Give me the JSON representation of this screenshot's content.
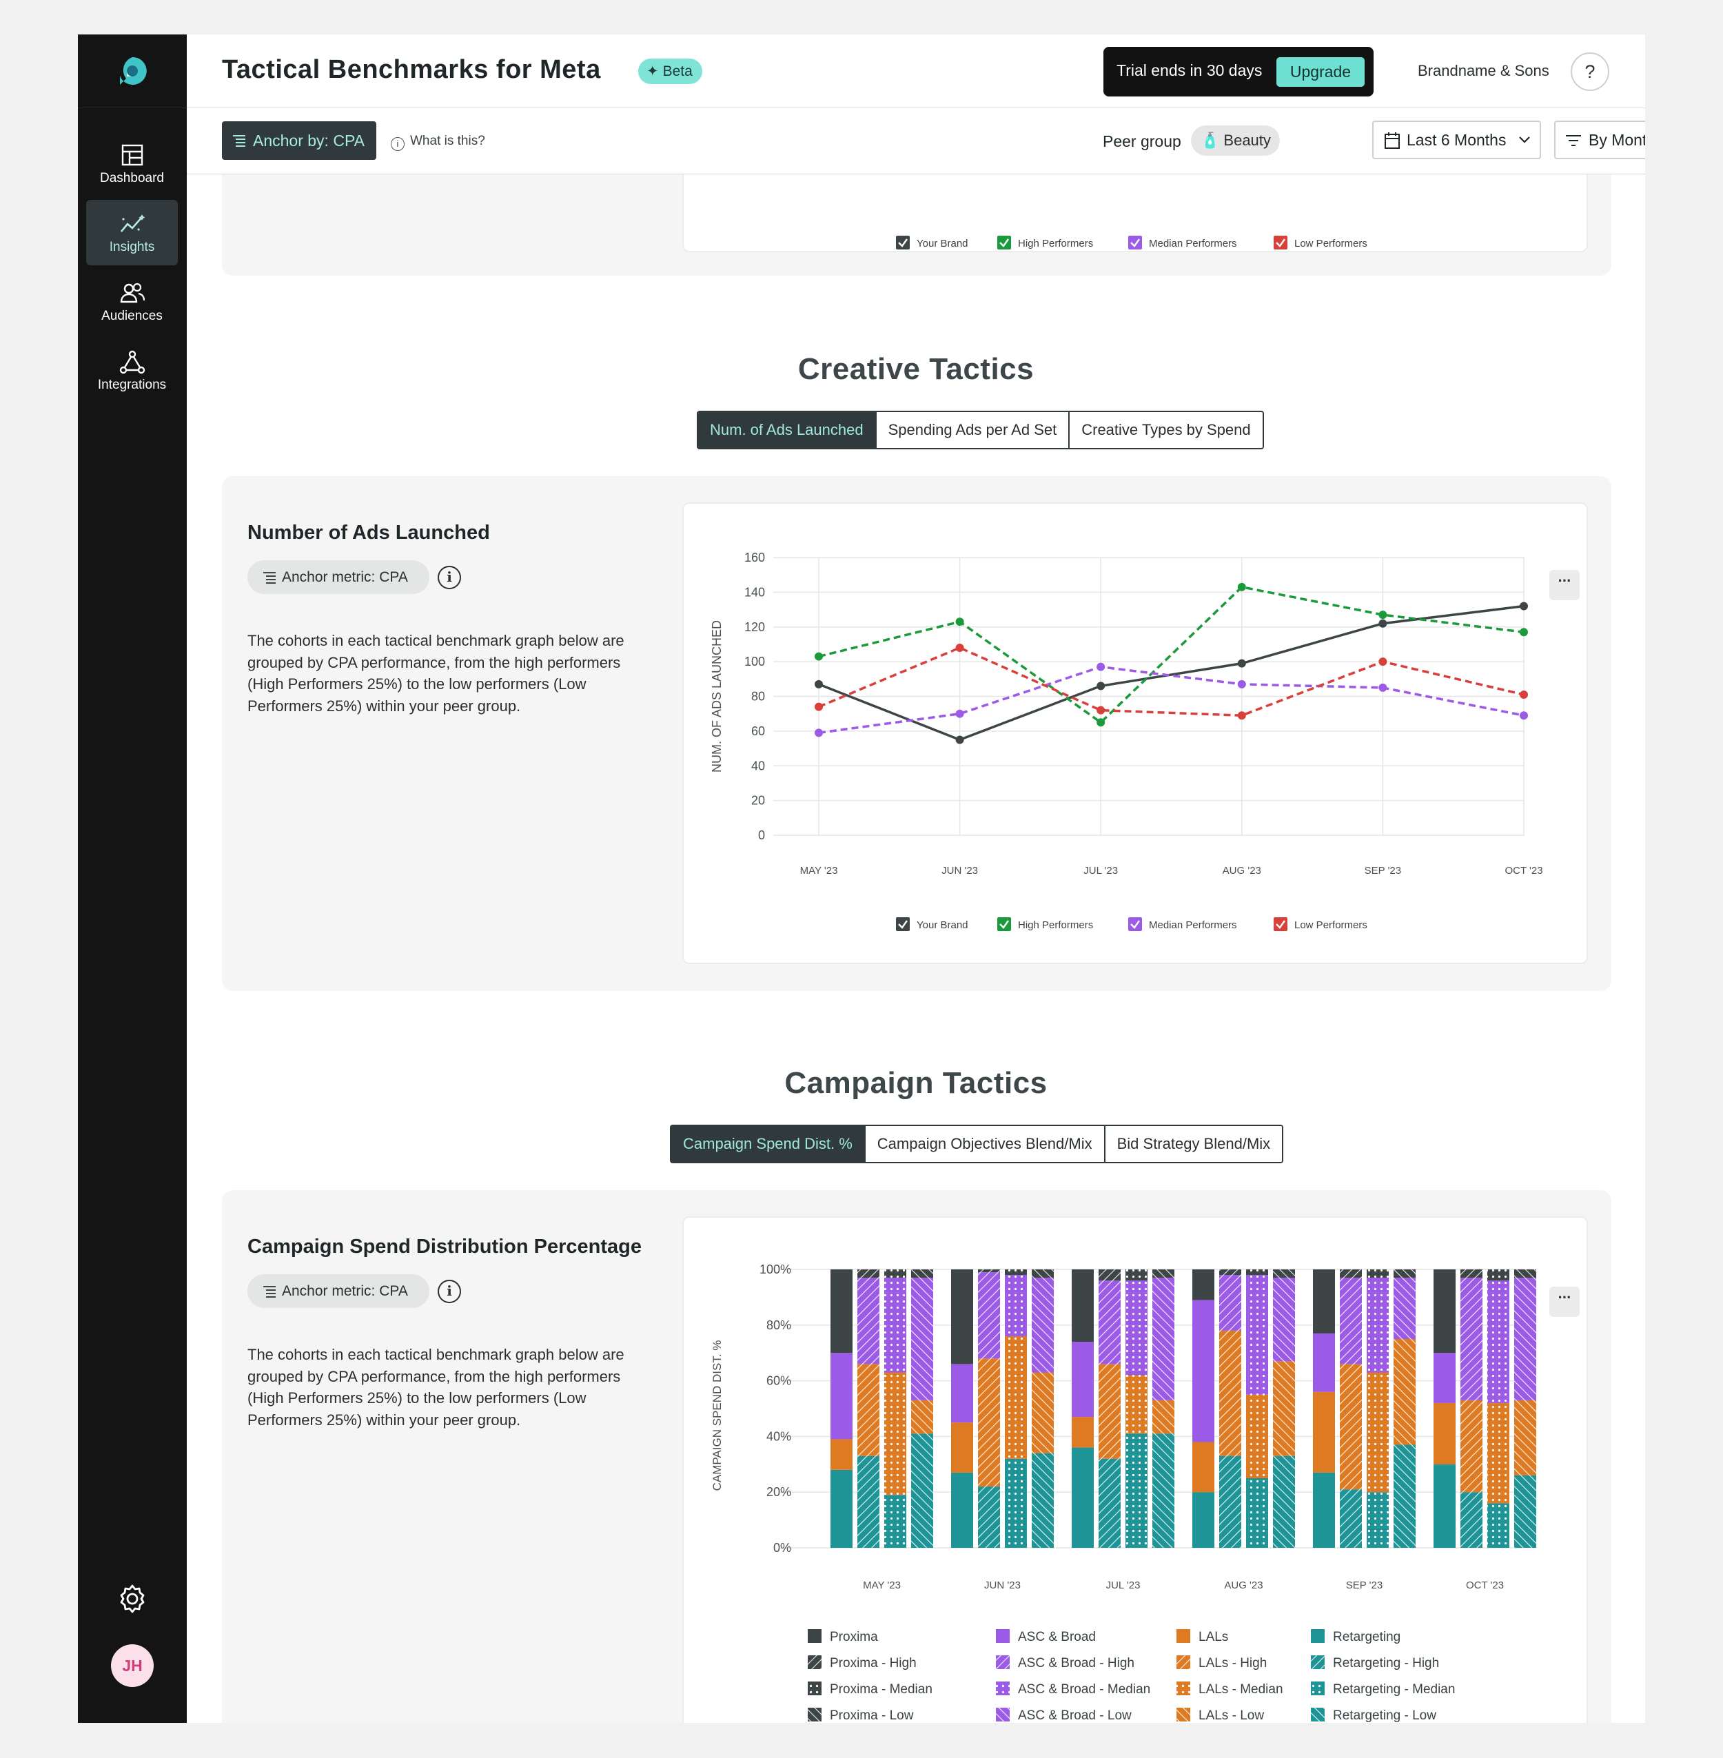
{
  "app": {
    "title": "Tactical Benchmarks for Meta",
    "beta_label": "Beta",
    "trial_text": "Trial ends in 30 days",
    "upgrade_label": "Upgrade",
    "brand": "Brandname & Sons",
    "help_label": "?"
  },
  "sidebar": {
    "items": [
      {
        "label": "Dashboard",
        "icon": "dashboard-icon"
      },
      {
        "label": "Insights",
        "icon": "insights-icon",
        "active": true
      },
      {
        "label": "Audiences",
        "icon": "audiences-icon"
      },
      {
        "label": "Integrations",
        "icon": "integrations-icon"
      }
    ],
    "avatar_initials": "JH"
  },
  "toolbar": {
    "anchor_label": "Anchor by: CPA",
    "what_label": "What is this?",
    "peer_group_label": "Peer group",
    "peer_group_value": "Beauty",
    "date_range": "Last 6 Months",
    "granularity": "By Month"
  },
  "top_legend": [
    "Your Brand",
    "High Performers",
    "Median Performers",
    "Low Performers"
  ],
  "creative": {
    "section_title": "Creative Tactics",
    "tabs": [
      "Num. of Ads Launched",
      "Spending Ads per Ad Set",
      "Creative Types by Spend"
    ],
    "card_title": "Number of Ads Launched",
    "metric_label": "Anchor metric: CPA",
    "description": "The cohorts in each tactical benchmark graph below are grouped by CPA performance, from the high performers (High Performers 25%) to the low performers (Low Performers 25%) within your peer group."
  },
  "campaign": {
    "section_title": "Campaign Tactics",
    "tabs": [
      "Campaign Spend Dist. %",
      "Campaign Objectives Blend/Mix",
      "Bid Strategy Blend/Mix"
    ],
    "card_title": "Campaign Spend Distribution Percentage",
    "metric_label": "Anchor metric: CPA",
    "description": "The cohorts in each tactical benchmark graph below are grouped by CPA performance, from the high performers (High Performers 25%) to the low performers (Low Performers 25%) within your peer group."
  },
  "colors": {
    "your_brand": "#3d4547",
    "high": "#1a9a3a",
    "median": "#9b5be6",
    "low": "#d8403a",
    "proxima": "#3d4547",
    "asc_broad": "#9b5be6",
    "lals": "#de7b22",
    "retargeting": "#1f9497",
    "accent": "#6ee0d2"
  },
  "chart_data": [
    {
      "type": "line",
      "ylabel": "NUM. OF ADS LAUNCHED",
      "ylim": [
        0,
        160
      ],
      "yticks": [
        "0",
        "20",
        "40",
        "60",
        "80",
        "100",
        "120",
        "140",
        "160"
      ],
      "categories": [
        "MAY '23",
        "JUN '23",
        "JUL '23",
        "AUG '23",
        "SEP '23",
        "OCT '23"
      ],
      "series": [
        {
          "name": "Your Brand",
          "values": [
            87,
            55,
            86,
            99,
            122,
            132
          ],
          "dashed": false
        },
        {
          "name": "High Performers",
          "values": [
            103,
            123,
            65,
            143,
            127,
            117
          ],
          "dashed": true
        },
        {
          "name": "Median Performers",
          "values": [
            59,
            70,
            97,
            87,
            85,
            69
          ],
          "dashed": true
        },
        {
          "name": "Low Performers",
          "values": [
            74,
            108,
            72,
            69,
            100,
            81
          ],
          "dashed": true
        }
      ],
      "legend": [
        "Your Brand",
        "High Performers",
        "Median Performers",
        "Low Performers"
      ],
      "grid": true,
      "legend_position": "bottom"
    },
    {
      "type": "bar",
      "stacked": true,
      "ylabel": "CAMPAIGN SPEND DIST. %",
      "ylim": [
        0,
        100
      ],
      "yticks": [
        "0%",
        "20%",
        "40%",
        "60%",
        "80%",
        "100%"
      ],
      "categories": [
        "MAY '23",
        "JUN '23",
        "JUL '23",
        "AUG '23",
        "SEP '23",
        "OCT '23"
      ],
      "stack_order": [
        "Retargeting",
        "LALs",
        "ASC & Broad",
        "Proxima"
      ],
      "groups": [
        {
          "name": "Your Brand",
          "pattern": "solid",
          "values": [
            [
              28,
              11,
              31,
              30
            ],
            [
              27,
              18,
              21,
              34
            ],
            [
              36,
              11,
              27,
              26
            ],
            [
              20,
              18,
              51,
              11
            ],
            [
              27,
              29,
              21,
              23
            ],
            [
              30,
              22,
              18,
              30
            ]
          ]
        },
        {
          "name": "High",
          "pattern": "diagonal",
          "values": [
            [
              33,
              33,
              31,
              3
            ],
            [
              22,
              46,
              31,
              1
            ],
            [
              32,
              34,
              30,
              4
            ],
            [
              33,
              45,
              20,
              2
            ],
            [
              21,
              45,
              31,
              3
            ],
            [
              20,
              33,
              44,
              3
            ]
          ]
        },
        {
          "name": "Median",
          "pattern": "dots",
          "values": [
            [
              19,
              44,
              34,
              3
            ],
            [
              32,
              44,
              22,
              2
            ],
            [
              41,
              21,
              34,
              4
            ],
            [
              25,
              30,
              43,
              2
            ],
            [
              20,
              43,
              34,
              3
            ],
            [
              16,
              36,
              44,
              4
            ]
          ]
        },
        {
          "name": "Low",
          "pattern": "diagonal-rev",
          "values": [
            [
              41,
              12,
              44,
              3
            ],
            [
              34,
              29,
              34,
              3
            ],
            [
              41,
              12,
              44,
              3
            ],
            [
              33,
              34,
              30,
              3
            ],
            [
              37,
              38,
              22,
              3
            ],
            [
              26,
              27,
              44,
              3
            ]
          ]
        }
      ],
      "legend": [
        [
          "Proxima",
          "Proxima - High",
          "Proxima - Median",
          "Proxima - Low"
        ],
        [
          "ASC & Broad",
          "ASC & Broad - High",
          "ASC & Broad - Median",
          "ASC & Broad - Low"
        ],
        [
          "LALs",
          "LALs - High",
          "LALs - Median",
          "LALs - Low"
        ],
        [
          "Retargeting",
          "Retargeting - High",
          "Retargeting - Median",
          "Retargeting - Low"
        ]
      ],
      "grid": true,
      "legend_position": "bottom"
    }
  ]
}
